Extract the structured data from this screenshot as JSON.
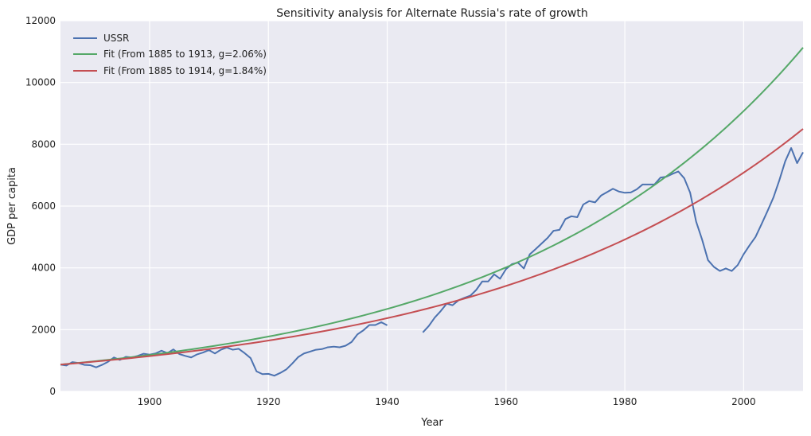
{
  "chart_data": {
    "type": "line",
    "title": "Sensitivity analysis for Alternate Russia's rate of growth",
    "xlabel": "Year",
    "ylabel": "GDP per capita",
    "xlim": [
      1885,
      2010
    ],
    "ylim": [
      0,
      12000
    ],
    "xticks": [
      1900,
      1920,
      1940,
      1960,
      1980,
      2000
    ],
    "yticks": [
      0,
      2000,
      4000,
      6000,
      8000,
      10000,
      12000
    ],
    "grid": true,
    "legend_position": "top-left",
    "series": [
      {
        "name": "USSR",
        "color": "#4c72b0",
        "segments": [
          [
            [
              1885,
              870
            ],
            [
              1886,
              840
            ],
            [
              1887,
              950
            ],
            [
              1888,
              920
            ],
            [
              1889,
              860
            ],
            [
              1890,
              850
            ],
            [
              1891,
              780
            ],
            [
              1892,
              860
            ],
            [
              1893,
              960
            ],
            [
              1894,
              1100
            ],
            [
              1895,
              1020
            ],
            [
              1896,
              1120
            ],
            [
              1897,
              1100
            ],
            [
              1898,
              1150
            ],
            [
              1899,
              1220
            ],
            [
              1900,
              1190
            ],
            [
              1901,
              1230
            ],
            [
              1902,
              1320
            ],
            [
              1903,
              1240
            ],
            [
              1904,
              1360
            ],
            [
              1905,
              1210
            ],
            [
              1906,
              1150
            ],
            [
              1907,
              1100
            ],
            [
              1908,
              1200
            ],
            [
              1909,
              1260
            ],
            [
              1910,
              1340
            ],
            [
              1911,
              1230
            ],
            [
              1912,
              1350
            ],
            [
              1913,
              1420
            ],
            [
              1914,
              1350
            ],
            [
              1915,
              1380
            ],
            [
              1916,
              1240
            ],
            [
              1917,
              1080
            ],
            [
              1918,
              650
            ],
            [
              1919,
              560
            ],
            [
              1920,
              570
            ],
            [
              1921,
              510
            ],
            [
              1922,
              600
            ],
            [
              1923,
              710
            ],
            [
              1924,
              900
            ],
            [
              1925,
              1110
            ],
            [
              1926,
              1230
            ],
            [
              1927,
              1290
            ],
            [
              1928,
              1350
            ],
            [
              1929,
              1370
            ],
            [
              1930,
              1430
            ],
            [
              1931,
              1450
            ],
            [
              1932,
              1430
            ],
            [
              1933,
              1480
            ],
            [
              1934,
              1600
            ],
            [
              1935,
              1850
            ],
            [
              1936,
              1980
            ],
            [
              1937,
              2150
            ],
            [
              1938,
              2150
            ],
            [
              1939,
              2240
            ],
            [
              1940,
              2140
            ]
          ],
          [
            [
              1946,
              1910
            ],
            [
              1947,
              2120
            ],
            [
              1948,
              2390
            ],
            [
              1949,
              2600
            ],
            [
              1950,
              2840
            ],
            [
              1951,
              2790
            ],
            [
              1952,
              2950
            ],
            [
              1953,
              3030
            ],
            [
              1954,
              3100
            ],
            [
              1955,
              3290
            ],
            [
              1956,
              3560
            ],
            [
              1957,
              3560
            ],
            [
              1958,
              3790
            ],
            [
              1959,
              3650
            ],
            [
              1960,
              3960
            ],
            [
              1961,
              4120
            ],
            [
              1962,
              4170
            ],
            [
              1963,
              3980
            ],
            [
              1964,
              4440
            ],
            [
              1965,
              4610
            ],
            [
              1966,
              4790
            ],
            [
              1967,
              4970
            ],
            [
              1968,
              5200
            ],
            [
              1969,
              5230
            ],
            [
              1970,
              5580
            ],
            [
              1971,
              5670
            ],
            [
              1972,
              5640
            ],
            [
              1973,
              6050
            ],
            [
              1974,
              6160
            ],
            [
              1975,
              6120
            ],
            [
              1976,
              6340
            ],
            [
              1977,
              6450
            ],
            [
              1978,
              6560
            ],
            [
              1979,
              6470
            ],
            [
              1980,
              6430
            ],
            [
              1981,
              6440
            ],
            [
              1982,
              6540
            ],
            [
              1983,
              6700
            ],
            [
              1984,
              6700
            ],
            [
              1985,
              6700
            ],
            [
              1986,
              6920
            ],
            [
              1987,
              6950
            ],
            [
              1988,
              7040
            ],
            [
              1989,
              7120
            ],
            [
              1990,
              6900
            ],
            [
              1991,
              6430
            ],
            [
              1992,
              5500
            ],
            [
              1993,
              4920
            ],
            [
              1994,
              4250
            ],
            [
              1995,
              4030
            ],
            [
              1996,
              3900
            ],
            [
              1997,
              3980
            ],
            [
              1998,
              3900
            ],
            [
              1999,
              4090
            ],
            [
              2000,
              4440
            ],
            [
              2001,
              4730
            ],
            [
              2002,
              5000
            ],
            [
              2003,
              5410
            ],
            [
              2004,
              5830
            ],
            [
              2005,
              6270
            ],
            [
              2006,
              6830
            ],
            [
              2007,
              7450
            ],
            [
              2008,
              7880
            ],
            [
              2009,
              7390
            ],
            [
              2010,
              7740
            ]
          ]
        ]
      },
      {
        "name": "Fit (From 1885 to 1913, g=2.06%)",
        "color": "#55a868",
        "formula": "exponential",
        "base_year": 1885,
        "base_value": 870,
        "growth_rate": 0.0206
      },
      {
        "name": "Fit (From 1885 to 1914, g=1.84%)",
        "color": "#c44e52",
        "formula": "exponential",
        "base_year": 1885,
        "base_value": 870,
        "growth_rate": 0.0184
      }
    ]
  }
}
